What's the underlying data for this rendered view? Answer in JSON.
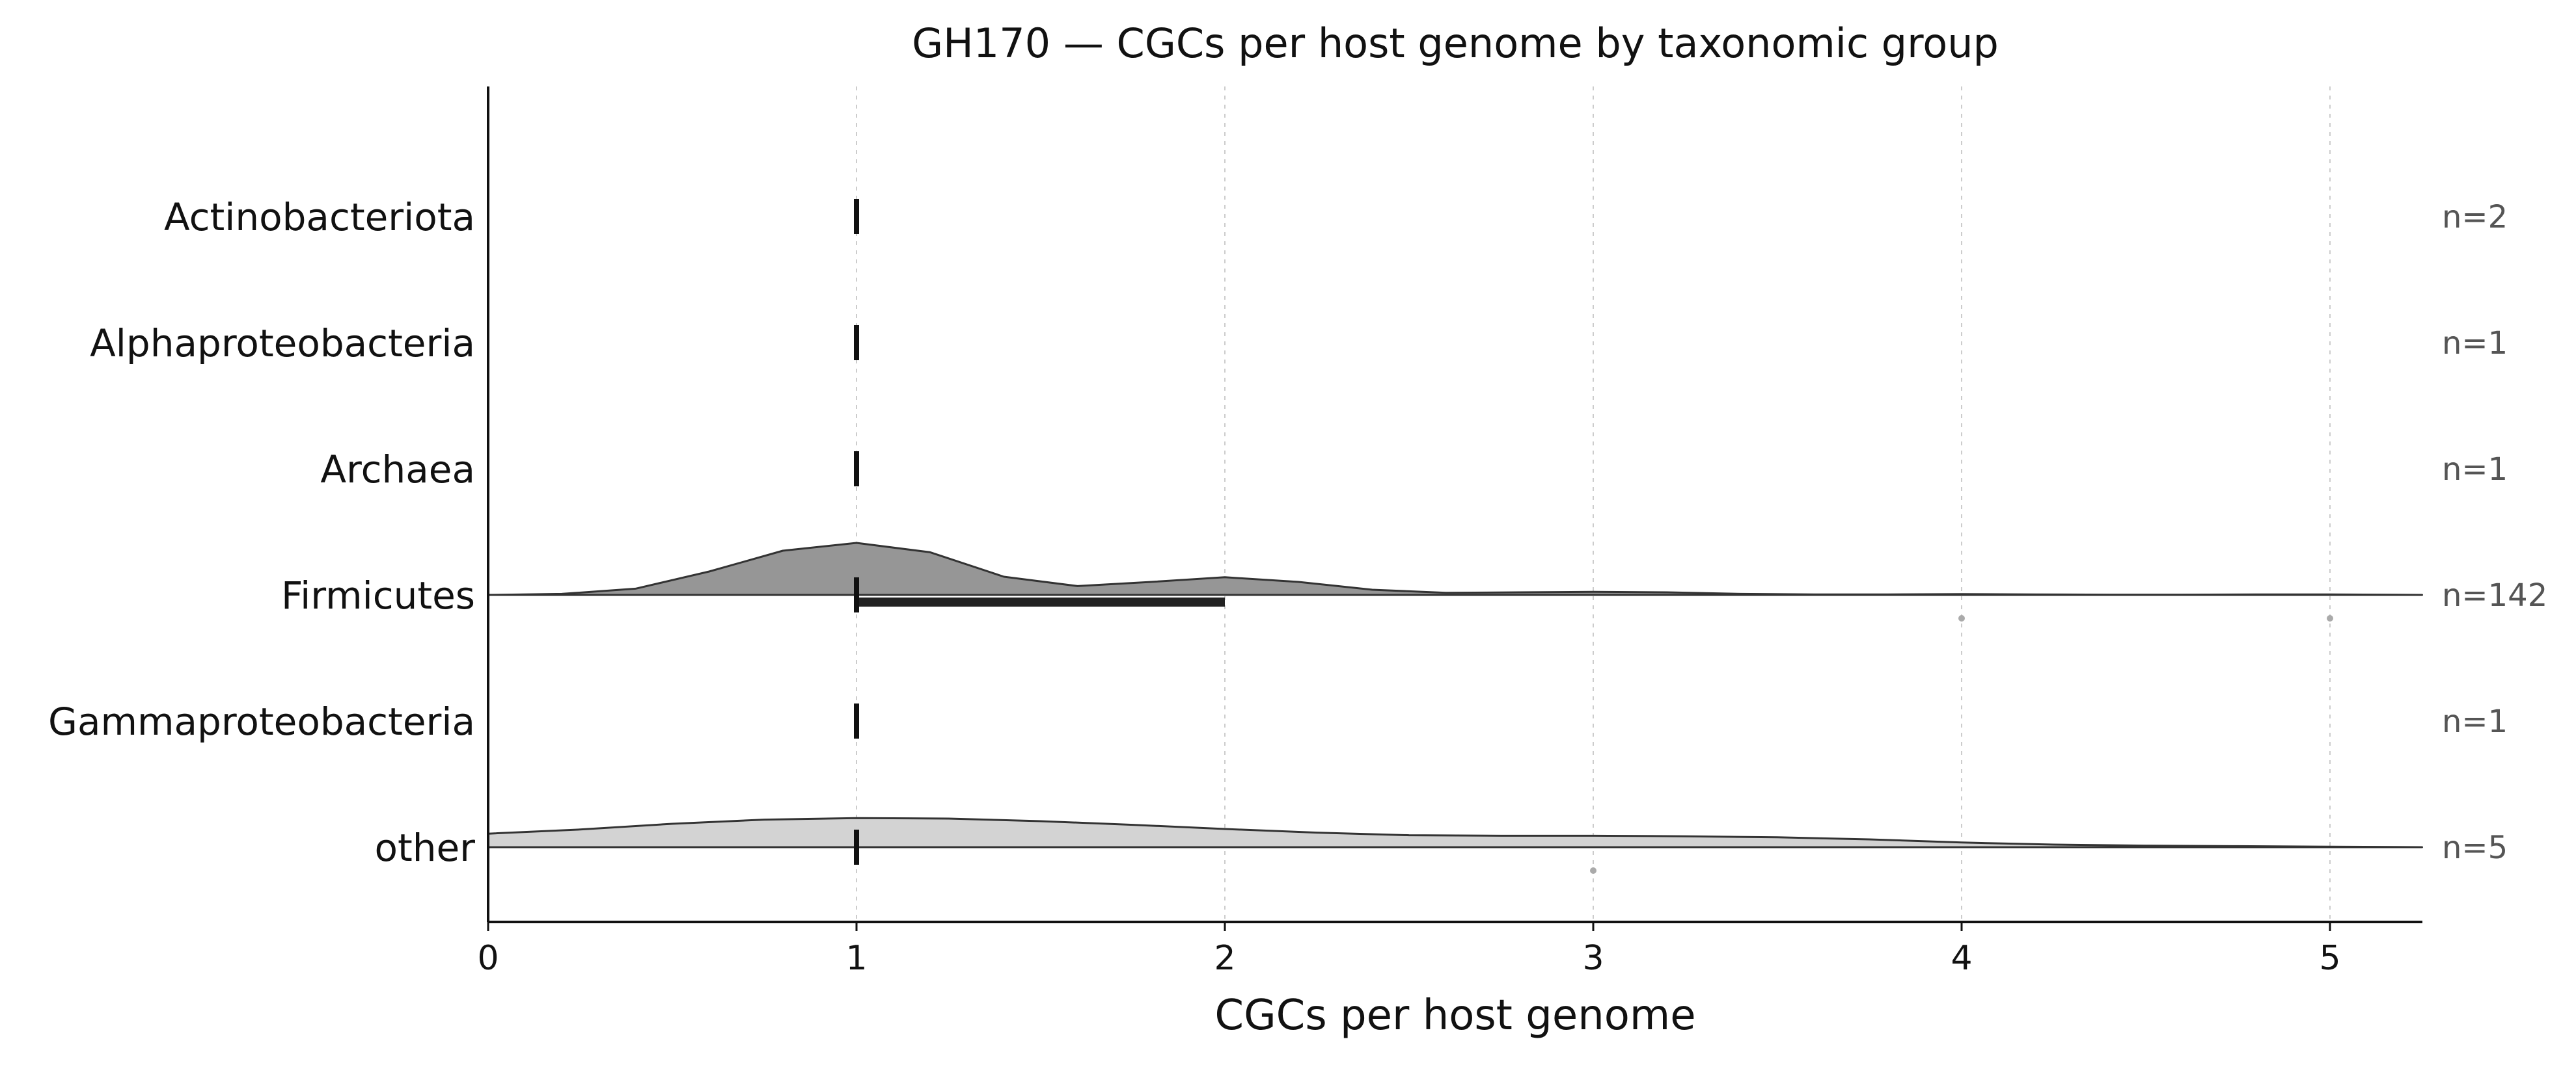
{
  "chart_data": {
    "type": "ridgeline",
    "title": "GH170 — CGCs per host genome by taxonomic group",
    "xlabel": "CGCs per host genome",
    "ylabel": "",
    "xlim": [
      0,
      5.25
    ],
    "xticks": [
      0,
      1,
      2,
      3,
      4,
      5
    ],
    "grid": "vertical dotted",
    "groups": [
      {
        "name": "Actinobacteriota",
        "n_label": "n=2",
        "median": 1,
        "iqr": null,
        "density": null,
        "outliers": []
      },
      {
        "name": "Alphaproteobacteria",
        "n_label": "n=1",
        "median": 1,
        "iqr": null,
        "density": null,
        "outliers": []
      },
      {
        "name": "Archaea",
        "n_label": "n=1",
        "median": 1,
        "iqr": null,
        "density": null,
        "outliers": []
      },
      {
        "name": "Firmicutes",
        "n_label": "n=142",
        "median": 1,
        "iqr": [
          1,
          2
        ],
        "density": {
          "x": [
            0,
            0.2,
            0.4,
            0.6,
            0.8,
            1.0,
            1.2,
            1.4,
            1.6,
            1.8,
            2.0,
            2.2,
            2.4,
            2.6,
            2.8,
            3.0,
            3.2,
            3.4,
            3.6,
            3.8,
            4.0,
            4.2,
            4.4,
            4.6,
            4.8,
            5.0,
            5.25
          ],
          "y": [
            0.0,
            0.02,
            0.12,
            0.45,
            0.85,
            1.0,
            0.82,
            0.35,
            0.17,
            0.25,
            0.34,
            0.25,
            0.1,
            0.04,
            0.05,
            0.06,
            0.05,
            0.02,
            0.01,
            0.01,
            0.015,
            0.01,
            0.005,
            0.005,
            0.01,
            0.01,
            0.0
          ]
        },
        "outliers": [
          4,
          5
        ]
      },
      {
        "name": "Gammaproteobacteria",
        "n_label": "n=1",
        "median": 1,
        "iqr": null,
        "density": null,
        "outliers": []
      },
      {
        "name": "other",
        "n_label": "n=5",
        "median": 1,
        "iqr": null,
        "density": {
          "x": [
            0,
            0.25,
            0.5,
            0.75,
            1.0,
            1.25,
            1.5,
            1.75,
            2.0,
            2.25,
            2.5,
            2.75,
            3.0,
            3.25,
            3.5,
            3.75,
            4.0,
            4.25,
            4.5,
            4.75,
            5.0,
            5.25
          ],
          "y": [
            0.26,
            0.34,
            0.45,
            0.53,
            0.56,
            0.55,
            0.5,
            0.43,
            0.35,
            0.28,
            0.23,
            0.22,
            0.22,
            0.21,
            0.19,
            0.15,
            0.09,
            0.05,
            0.03,
            0.02,
            0.01,
            0.0
          ]
        },
        "outliers": [
          3
        ]
      }
    ]
  },
  "style": {
    "firmicutes_fill": "#969696",
    "other_fill": "#d3d3d3",
    "line_color": "#333333",
    "median_color": "#111111",
    "iqr_color": "#222222",
    "outlier_color": "#aaaaaa",
    "grid_color": "#cccccc"
  }
}
